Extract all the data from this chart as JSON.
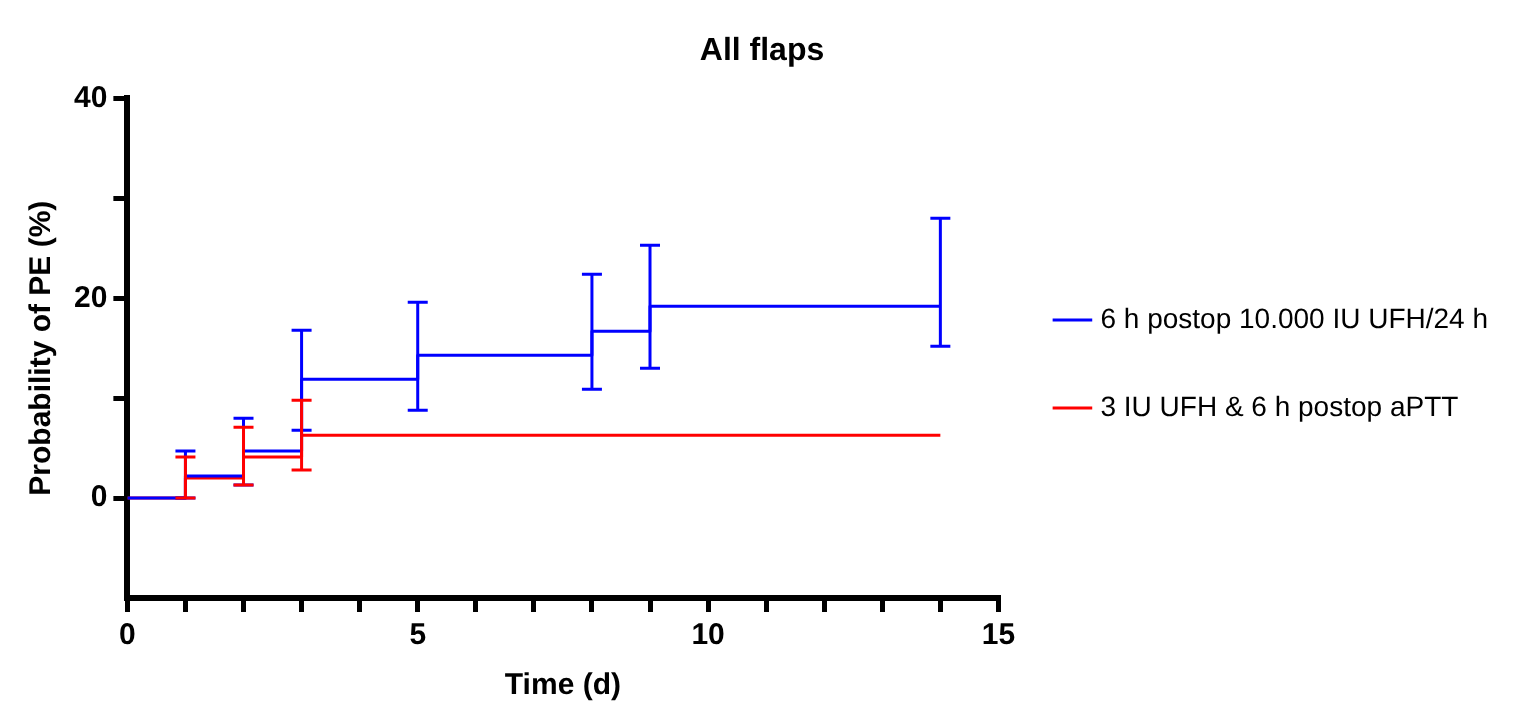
{
  "chart_data": {
    "type": "step",
    "title": "All flaps",
    "xlabel": "Time (d)",
    "ylabel": "Probability of PE (%)",
    "xlim": [
      0,
      15
    ],
    "xticks": [
      0,
      {
        "value": 1,
        "label": null
      },
      {
        "value": 2,
        "label": null
      },
      {
        "value": 3,
        "label": null
      },
      {
        "value": 4,
        "label": null
      },
      5,
      {
        "value": 6,
        "label": null
      },
      {
        "value": 7,
        "label": null
      },
      {
        "value": 8,
        "label": null
      },
      {
        "value": 9,
        "label": null
      },
      10,
      {
        "value": 11,
        "label": null
      },
      {
        "value": 12,
        "label": null
      },
      {
        "value": 13,
        "label": null
      },
      {
        "value": 14,
        "label": null
      },
      15
    ],
    "ylim": [
      -10,
      40
    ],
    "yticks": [
      0,
      {
        "value": 10,
        "label": null
      },
      20,
      {
        "value": 30,
        "label": null
      },
      40
    ],
    "grid": false,
    "legend": "right",
    "marker": "none",
    "line_style": "solid",
    "series": [
      {
        "name": "6 h postop 10.000 IU UFH/24 h",
        "color": "#0000ff",
        "x": [
          0,
          1,
          2,
          3,
          5,
          8,
          9,
          14
        ],
        "values": [
          0,
          2.2,
          4.7,
          11.9,
          14.3,
          16.7,
          19.2,
          19.2
        ],
        "errors": [
          null,
          [
            0,
            4.7
          ],
          [
            1.3,
            8.0
          ],
          [
            6.8,
            16.8
          ],
          [
            8.8,
            19.6
          ],
          [
            10.9,
            22.4
          ],
          [
            13.0,
            25.3
          ],
          [
            15.2,
            28.0
          ]
        ]
      },
      {
        "name": "3 IU UFH & 6 h postop aPTT",
        "color": "#ff0000",
        "x": [
          0,
          1,
          2,
          3,
          14
        ],
        "values": [
          0,
          2.0,
          4.1,
          6.3,
          6.3
        ],
        "errors": [
          null,
          [
            0,
            4.1
          ],
          [
            1.3,
            7.1
          ],
          [
            2.8,
            9.8
          ],
          null
        ]
      }
    ]
  }
}
